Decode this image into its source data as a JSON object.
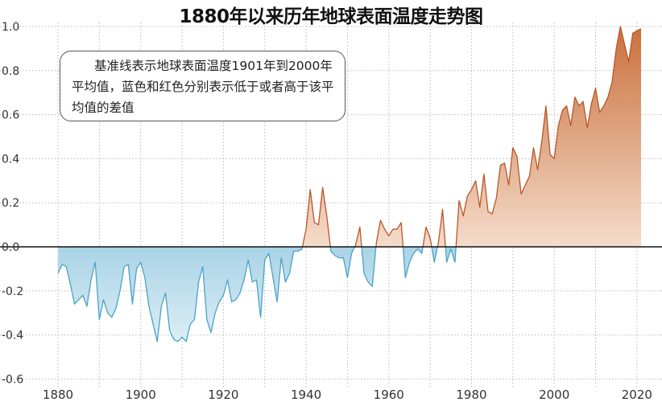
{
  "chart_data": {
    "type": "area",
    "title": "1880年以来历年地球表面温度走势图",
    "annotation": "基准线表示地球表面温度1901年到2000年平均值，蓝色和红色分别表示低于或者高于该平均值的差值",
    "xlabel": "",
    "ylabel": "",
    "xlim": [
      1878,
      2024
    ],
    "ylim": [
      -0.6,
      1.0
    ],
    "x_ticks": [
      1880,
      1900,
      1920,
      1940,
      1960,
      1980,
      2000,
      2020
    ],
    "y_ticks": [
      1.0,
      0.8,
      0.6,
      0.4,
      0.2,
      0.0,
      -0.2,
      -0.4,
      -0.6
    ],
    "y_tick_labels": [
      "1.0",
      "0.8",
      "0.6",
      "0.4",
      "0.2",
      "0.0",
      "-0.2",
      "-0.4",
      "-0.6"
    ],
    "grid": "dotted vertical and horizontal",
    "baseline": 0.0,
    "colors": {
      "below": "#4aa3c8",
      "below_fill": "#cfe7f2",
      "above": "#b8572a",
      "above_fill_top": "#c96f3a",
      "above_fill_bottom": "#f5dccb"
    },
    "x": [
      1880,
      1881,
      1882,
      1883,
      1884,
      1885,
      1886,
      1887,
      1888,
      1889,
      1890,
      1891,
      1892,
      1893,
      1894,
      1895,
      1896,
      1897,
      1898,
      1899,
      1900,
      1901,
      1902,
      1903,
      1904,
      1905,
      1906,
      1907,
      1908,
      1909,
      1910,
      1911,
      1912,
      1913,
      1914,
      1915,
      1916,
      1917,
      1918,
      1919,
      1920,
      1921,
      1922,
      1923,
      1924,
      1925,
      1926,
      1927,
      1928,
      1929,
      1930,
      1931,
      1932,
      1933,
      1934,
      1935,
      1936,
      1937,
      1938,
      1939,
      1940,
      1941,
      1942,
      1943,
      1944,
      1945,
      1946,
      1947,
      1948,
      1949,
      1950,
      1951,
      1952,
      1953,
      1954,
      1955,
      1956,
      1957,
      1958,
      1959,
      1960,
      1961,
      1962,
      1963,
      1964,
      1965,
      1966,
      1967,
      1968,
      1969,
      1970,
      1971,
      1972,
      1973,
      1974,
      1975,
      1976,
      1977,
      1978,
      1979,
      1980,
      1981,
      1982,
      1983,
      1984,
      1985,
      1986,
      1987,
      1988,
      1989,
      1990,
      1991,
      1992,
      1993,
      1994,
      1995,
      1996,
      1997,
      1998,
      1999,
      2000,
      2001,
      2002,
      2003,
      2004,
      2005,
      2006,
      2007,
      2008,
      2009,
      2010,
      2011,
      2012,
      2013,
      2014,
      2015,
      2016,
      2017,
      2018,
      2019,
      2020,
      2021
    ],
    "values": [
      -0.12,
      -0.08,
      -0.09,
      -0.17,
      -0.26,
      -0.24,
      -0.22,
      -0.27,
      -0.15,
      -0.07,
      -0.33,
      -0.24,
      -0.3,
      -0.32,
      -0.28,
      -0.2,
      -0.09,
      -0.08,
      -0.26,
      -0.1,
      -0.07,
      -0.14,
      -0.27,
      -0.35,
      -0.43,
      -0.27,
      -0.21,
      -0.38,
      -0.42,
      -0.43,
      -0.41,
      -0.43,
      -0.35,
      -0.33,
      -0.16,
      -0.09,
      -0.33,
      -0.39,
      -0.3,
      -0.25,
      -0.22,
      -0.15,
      -0.25,
      -0.24,
      -0.21,
      -0.15,
      -0.06,
      -0.16,
      -0.15,
      -0.32,
      -0.06,
      -0.03,
      -0.14,
      -0.25,
      -0.05,
      -0.16,
      -0.12,
      -0.02,
      -0.02,
      -0.01,
      0.08,
      0.26,
      0.11,
      0.1,
      0.27,
      0.14,
      -0.02,
      -0.04,
      -0.05,
      -0.05,
      -0.14,
      -0.03,
      0.01,
      0.09,
      -0.12,
      -0.16,
      -0.18,
      0.02,
      0.12,
      0.08,
      0.05,
      0.08,
      0.08,
      0.11,
      -0.14,
      -0.07,
      -0.03,
      -0.01,
      -0.03,
      0.09,
      0.04,
      -0.07,
      0.02,
      0.17,
      -0.07,
      -0.01,
      -0.07,
      0.21,
      0.14,
      0.23,
      0.26,
      0.3,
      0.18,
      0.33,
      0.16,
      0.15,
      0.22,
      0.37,
      0.38,
      0.28,
      0.45,
      0.41,
      0.24,
      0.28,
      0.32,
      0.45,
      0.35,
      0.48,
      0.64,
      0.42,
      0.4,
      0.55,
      0.62,
      0.64,
      0.55,
      0.68,
      0.64,
      0.66,
      0.54,
      0.65,
      0.72,
      0.61,
      0.64,
      0.68,
      0.75,
      0.9,
      1.0,
      0.92,
      0.84,
      0.97,
      0.98,
      0.99
    ]
  }
}
